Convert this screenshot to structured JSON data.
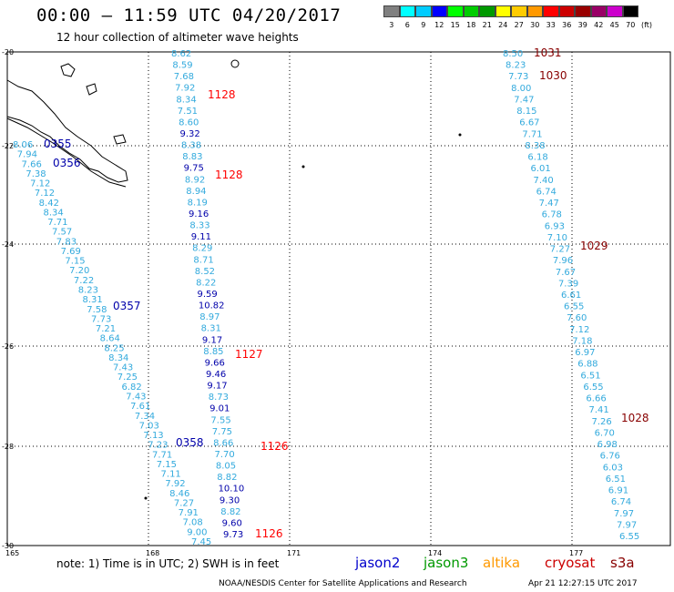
{
  "header": {
    "title": "00:00 – 11:59 UTC 04/20/2017",
    "subtitle": "12 hour collection of altimeter wave heights"
  },
  "color_scale": {
    "unit": "(ft)",
    "labels": [
      "3",
      "6",
      "9",
      "12",
      "15",
      "18",
      "21",
      "24",
      "27",
      "30",
      "33",
      "36",
      "39",
      "42",
      "45",
      "70"
    ],
    "colors": [
      "#808080",
      "#00ffff",
      "#00ccff",
      "#0000ff",
      "#00ff00",
      "#00cc00",
      "#009900",
      "#ffff00",
      "#ffcc00",
      "#ff9900",
      "#ff0000",
      "#cc0000",
      "#990000",
      "#990066",
      "#cc00cc",
      "#000000"
    ]
  },
  "map": {
    "lat_labels": [
      "-20",
      "-22",
      "-24",
      "-26",
      "-28",
      "-30"
    ],
    "lon_labels": [
      "165",
      "168",
      "171",
      "174",
      "177"
    ],
    "colors": {
      "light": "#33aadd",
      "dark": "#0000aa",
      "red": "#ff0000",
      "maroon": "#880000"
    },
    "passes": [
      {
        "label": "0355",
        "color": "dark"
      },
      {
        "label": "0356",
        "color": "dark"
      },
      {
        "label": "0357",
        "color": "dark"
      },
      {
        "label": "0358",
        "color": "dark"
      },
      {
        "label": "1128",
        "color": "red"
      },
      {
        "label": "1128",
        "color": "red"
      },
      {
        "label": "1127",
        "color": "red"
      },
      {
        "label": "1126",
        "color": "red"
      },
      {
        "label": "1126",
        "color": "red"
      },
      {
        "label": "1031",
        "color": "maroon"
      },
      {
        "label": "1030",
        "color": "maroon"
      },
      {
        "label": "1029",
        "color": "maroon"
      },
      {
        "label": "1028",
        "color": "maroon"
      }
    ],
    "track_a": [
      "8.06",
      "7.94",
      "7.66",
      "7.38",
      "7.12",
      "7.12",
      "8.42",
      "8.34",
      "7.71",
      "7.57",
      "7.83",
      "7.69",
      "7.15",
      "7.20",
      "7.22",
      "8.23",
      "8.31",
      "7.58",
      "7.73",
      "7.21",
      "8.64",
      "8.25",
      "8.34",
      "7.43",
      "7.25",
      "6.82",
      "7.43",
      "7.61",
      "7.34",
      "7.03",
      "7.13",
      "7.23",
      "7.71",
      "7.15",
      "7.11",
      "7.92",
      "8.46",
      "7.27",
      "7.91",
      "7.08",
      "9.00",
      "7.45"
    ],
    "track_b": [
      {
        "v": "8.62",
        "c": "light"
      },
      {
        "v": "8.59",
        "c": "light"
      },
      {
        "v": "7.68",
        "c": "light"
      },
      {
        "v": "7.92",
        "c": "light"
      },
      {
        "v": "8.34",
        "c": "light"
      },
      {
        "v": "7.51",
        "c": "light"
      },
      {
        "v": "8.60",
        "c": "light"
      },
      {
        "v": "9.32",
        "c": "dark"
      },
      {
        "v": "8.38",
        "c": "light"
      },
      {
        "v": "8.83",
        "c": "light"
      },
      {
        "v": "9.75",
        "c": "dark"
      },
      {
        "v": "8.92",
        "c": "light"
      },
      {
        "v": "8.94",
        "c": "light"
      },
      {
        "v": "8.19",
        "c": "light"
      },
      {
        "v": "9.16",
        "c": "dark"
      },
      {
        "v": "8.33",
        "c": "light"
      },
      {
        "v": "9.11",
        "c": "dark"
      },
      {
        "v": "8.29",
        "c": "light"
      },
      {
        "v": "8.71",
        "c": "light"
      },
      {
        "v": "8.52",
        "c": "light"
      },
      {
        "v": "8.22",
        "c": "light"
      },
      {
        "v": "9.59",
        "c": "dark"
      },
      {
        "v": "10.82",
        "c": "dark"
      },
      {
        "v": "8.97",
        "c": "light"
      },
      {
        "v": "8.31",
        "c": "light"
      },
      {
        "v": "9.17",
        "c": "dark"
      },
      {
        "v": "8.85",
        "c": "light"
      },
      {
        "v": "9.66",
        "c": "dark"
      },
      {
        "v": "9.46",
        "c": "dark"
      },
      {
        "v": "9.17",
        "c": "dark"
      },
      {
        "v": "8.73",
        "c": "light"
      },
      {
        "v": "9.01",
        "c": "dark"
      },
      {
        "v": "7.55",
        "c": "light"
      },
      {
        "v": "7.75",
        "c": "light"
      },
      {
        "v": "8.66",
        "c": "light"
      },
      {
        "v": "7.70",
        "c": "light"
      },
      {
        "v": "8.05",
        "c": "light"
      },
      {
        "v": "8.82",
        "c": "light"
      },
      {
        "v": "10.10",
        "c": "dark"
      },
      {
        "v": "9.30",
        "c": "dark"
      },
      {
        "v": "8.82",
        "c": "light"
      },
      {
        "v": "9.60",
        "c": "dark"
      },
      {
        "v": "9.73",
        "c": "dark"
      }
    ],
    "track_c": [
      "8.50",
      "8.23",
      "7.73",
      "8.00",
      "7.47",
      "8.15",
      "6.67",
      "7.71",
      "8.38",
      "6.18",
      "6.01",
      "7.40",
      "6.74",
      "7.47",
      "6.78",
      "6.93",
      "7.10",
      "7.27",
      "7.96",
      "7.67",
      "7.39",
      "6.61",
      "6.55",
      "7.60",
      "7.12",
      "7.18",
      "6.97",
      "6.88",
      "6.51",
      "6.55",
      "6.66",
      "7.41",
      "7.26",
      "6.70",
      "6.98",
      "6.76",
      "6.03",
      "6.51",
      "6.91",
      "6.74",
      "7.97",
      "7.97",
      "6.55"
    ]
  },
  "footer": {
    "note": "note: 1) Time is in UTC; 2) SWH is in feet",
    "legend": [
      {
        "label": "jason2",
        "color": "#0000cc"
      },
      {
        "label": "jason3",
        "color": "#009900"
      },
      {
        "label": "altika",
        "color": "#ff9900"
      },
      {
        "label": "cryosat",
        "color": "#cc0000"
      },
      {
        "label": "s3a",
        "color": "#880000"
      }
    ],
    "credit": "NOAA/NESDIS Center for Satellite Applications and Research",
    "timestamp": "Apr 21 12:27:15 UTC 2017"
  }
}
